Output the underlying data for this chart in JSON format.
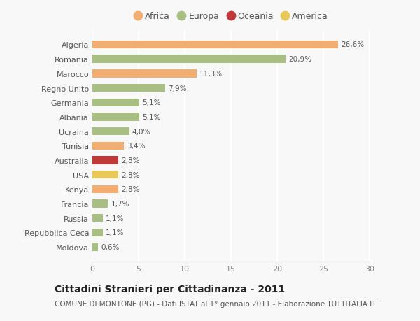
{
  "categories": [
    "Algeria",
    "Romania",
    "Marocco",
    "Regno Unito",
    "Germania",
    "Albania",
    "Ucraina",
    "Tunisia",
    "Australia",
    "USA",
    "Kenya",
    "Francia",
    "Russia",
    "Repubblica Ceca",
    "Moldova"
  ],
  "values": [
    26.6,
    20.9,
    11.3,
    7.9,
    5.1,
    5.1,
    4.0,
    3.4,
    2.8,
    2.8,
    2.8,
    1.7,
    1.1,
    1.1,
    0.6
  ],
  "labels": [
    "26,6%",
    "20,9%",
    "11,3%",
    "7,9%",
    "5,1%",
    "5,1%",
    "4,0%",
    "3,4%",
    "2,8%",
    "2,8%",
    "2,8%",
    "1,7%",
    "1,1%",
    "1,1%",
    "0,6%"
  ],
  "continents": [
    "Africa",
    "Europa",
    "Africa",
    "Europa",
    "Europa",
    "Europa",
    "Europa",
    "Africa",
    "Oceania",
    "America",
    "Africa",
    "Europa",
    "Europa",
    "Europa",
    "Europa"
  ],
  "continent_colors": {
    "Africa": "#F2AE72",
    "Europa": "#A8BE82",
    "Oceania": "#C03838",
    "America": "#E8C858"
  },
  "legend_order": [
    "Africa",
    "Europa",
    "Oceania",
    "America"
  ],
  "title": "Cittadini Stranieri per Cittadinanza - 2011",
  "subtitle": "COMUNE DI MONTONE (PG) - Dati ISTAT al 1° gennaio 2011 - Elaborazione TUTTITALIA.IT",
  "xlim": [
    0,
    30
  ],
  "xticks": [
    0,
    5,
    10,
    15,
    20,
    25,
    30
  ],
  "background_color": "#f8f8f8",
  "grid_color": "#ffffff",
  "bar_height": 0.55,
  "title_fontsize": 10,
  "subtitle_fontsize": 7.5,
  "label_fontsize": 7.5,
  "tick_fontsize": 8,
  "legend_fontsize": 9
}
